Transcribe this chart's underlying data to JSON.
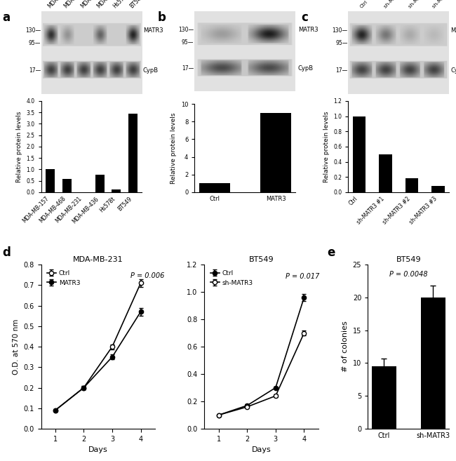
{
  "bar_a_categories": [
    "MDA-MB-157",
    "MDA-MB-468",
    "MDA-MB-231",
    "MDA-MB-436",
    "Hs578t",
    "BT549"
  ],
  "bar_a_values": [
    1.0,
    0.58,
    0.0,
    0.75,
    0.12,
    3.45
  ],
  "bar_a_ylabel": "Relative protein levels",
  "bar_a_ylim": [
    0.0,
    4.0
  ],
  "bar_a_yticks": [
    0.0,
    0.5,
    1.0,
    1.5,
    2.0,
    2.5,
    3.0,
    3.5,
    4.0
  ],
  "bar_b_categories": [
    "Ctrl",
    "MATR3"
  ],
  "bar_b_values": [
    1.0,
    9.0
  ],
  "bar_b_ylabel": "Relative protein levels",
  "bar_b_ylim": [
    0.0,
    10.0
  ],
  "bar_b_yticks": [
    0,
    2,
    4,
    6,
    8,
    10
  ],
  "bar_c_categories": [
    "Ctrl",
    "sh-MATR3 #1",
    "sh-MATR3 #2",
    "sh-MATR3 #3"
  ],
  "bar_c_values": [
    1.0,
    0.5,
    0.18,
    0.08
  ],
  "bar_c_ylabel": "Relative protein levels",
  "bar_c_ylim": [
    0.0,
    1.2
  ],
  "bar_c_yticks": [
    0.0,
    0.2,
    0.4,
    0.6,
    0.8,
    1.0,
    1.2
  ],
  "line_d1_title": "MDA-MB-231",
  "line_d1_days": [
    1,
    2,
    3,
    4
  ],
  "line_d1_ctrl_values": [
    0.09,
    0.2,
    0.4,
    0.71
  ],
  "line_d1_ctrl_err": [
    0.005,
    0.008,
    0.012,
    0.018
  ],
  "line_d1_matr3_values": [
    0.09,
    0.2,
    0.35,
    0.57
  ],
  "line_d1_matr3_err": [
    0.005,
    0.008,
    0.012,
    0.018
  ],
  "line_d1_ylabel": "O.D. at 570 nm",
  "line_d1_ylim": [
    0.0,
    0.8
  ],
  "line_d1_yticks": [
    0.0,
    0.1,
    0.2,
    0.3,
    0.4,
    0.5,
    0.6,
    0.7,
    0.8
  ],
  "line_d1_pval": "P = 0.006",
  "line_d1_legend1": "Ctrl",
  "line_d1_legend2": "MATR3",
  "line_d2_title": "BT549",
  "line_d2_days": [
    1,
    2,
    3,
    4
  ],
  "line_d2_ctrl_values": [
    0.1,
    0.17,
    0.3,
    0.96
  ],
  "line_d2_ctrl_err": [
    0.005,
    0.008,
    0.01,
    0.025
  ],
  "line_d2_shmatr3_values": [
    0.1,
    0.16,
    0.24,
    0.7
  ],
  "line_d2_shmatr3_err": [
    0.005,
    0.008,
    0.01,
    0.02
  ],
  "line_d2_ylim": [
    0.0,
    1.2
  ],
  "line_d2_yticks": [
    0.0,
    0.2,
    0.4,
    0.6,
    0.8,
    1.0,
    1.2
  ],
  "line_d2_pval": "P = 0.017",
  "line_d2_legend1": "Ctrl",
  "line_d2_legend2": "sh-MATR3",
  "bar_e_title": "BT549",
  "bar_e_categories": [
    "Ctrl",
    "sh-MATR3"
  ],
  "bar_e_values": [
    9.5,
    20.0
  ],
  "bar_e_errors": [
    1.2,
    1.8
  ],
  "bar_e_ylabel": "# of colonies",
  "bar_e_ylim": [
    0,
    25
  ],
  "bar_e_yticks": [
    0,
    5,
    10,
    15,
    20,
    25
  ],
  "bar_e_pval": "P = 0.0048",
  "xlabel_days": "Days",
  "bar_color": "#000000",
  "bg_color": "#ffffff"
}
